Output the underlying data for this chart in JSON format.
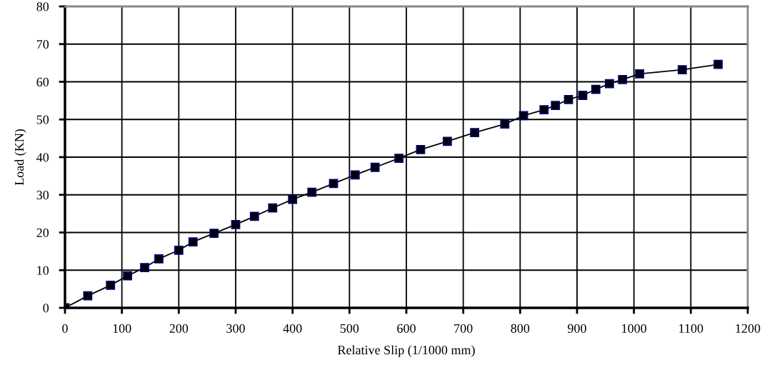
{
  "chart_data": {
    "type": "line",
    "xlabel": "Relative Slip (1/1000 mm)",
    "ylabel": "Load (KN)",
    "x": [
      0,
      40,
      80,
      110,
      140,
      165,
      200,
      225,
      262,
      300,
      333,
      365,
      400,
      434,
      472,
      510,
      545,
      587,
      625,
      672,
      720,
      773,
      806,
      842,
      862,
      885,
      910,
      933,
      957,
      980,
      1010,
      1085,
      1148
    ],
    "series": [
      {
        "color": "#000000",
        "values": [
          0,
          3.2,
          6,
          8.5,
          10.7,
          13,
          15.3,
          17.5,
          19.8,
          22.1,
          24.3,
          26.5,
          28.8,
          30.7,
          33,
          35.3,
          37.3,
          39.7,
          42,
          44.2,
          46.5,
          48.8,
          51,
          52.6,
          53.7,
          55.3,
          56.4,
          58,
          59.5,
          60.6,
          62.1,
          63.2,
          64.6
        ]
      }
    ],
    "xlim": [
      0,
      1200
    ],
    "xticks": [
      0,
      100,
      200,
      300,
      400,
      500,
      600,
      700,
      800,
      900,
      1000,
      1100,
      1200
    ],
    "ylim": [
      0,
      80
    ],
    "yticks": [
      0,
      10,
      20,
      30,
      40,
      50,
      60,
      70,
      80
    ],
    "grid": true,
    "marker": "square",
    "line_style": "solid"
  }
}
